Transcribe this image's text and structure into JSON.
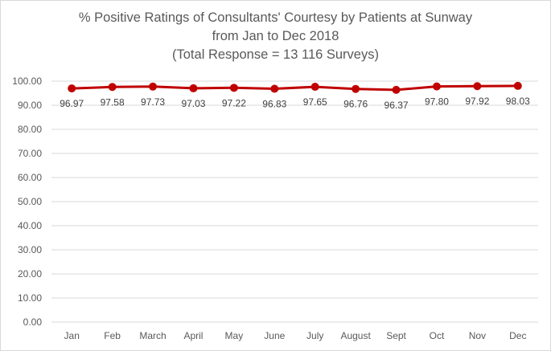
{
  "chart_data": {
    "type": "line",
    "title_lines": [
      "% Positive Ratings of Consultants' Courtesy by Patients at Sunway",
      "from Jan to Dec 2018",
      "(Total Response = 13 116 Surveys)"
    ],
    "categories": [
      "Jan",
      "Feb",
      "March",
      "April",
      "May",
      "June",
      "July",
      "August",
      "Sept",
      "Oct",
      "Nov",
      "Dec"
    ],
    "series": [
      {
        "values": [
          96.97,
          97.58,
          97.73,
          97.03,
          97.22,
          96.83,
          97.65,
          96.76,
          96.37,
          97.8,
          97.92,
          98.03
        ],
        "value_labels": [
          "96.97",
          "97.58",
          "97.73",
          "97.03",
          "97.22",
          "96.83",
          "97.65",
          "96.76",
          "96.37",
          "97.80",
          "97.92",
          "98.03"
        ],
        "color": "#c00000",
        "marker": "circle"
      }
    ],
    "ylim": [
      0,
      100
    ],
    "yticks": [
      "0.00",
      "10.00",
      "20.00",
      "30.00",
      "40.00",
      "50.00",
      "60.00",
      "70.00",
      "80.00",
      "90.00",
      "100.00"
    ],
    "grid": true,
    "gridline_color": "#d9d9d9",
    "legend": "none",
    "data_labels": "below"
  }
}
